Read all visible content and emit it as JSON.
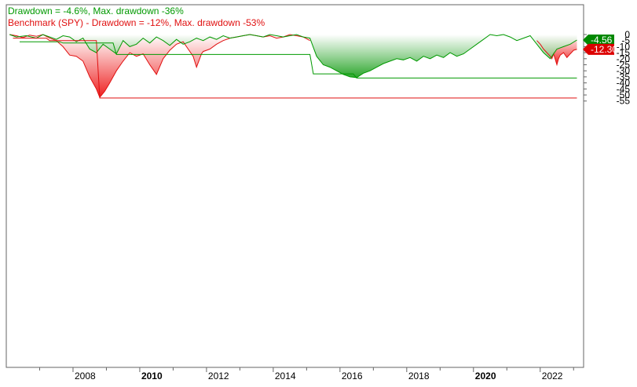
{
  "chart_data": {
    "type": "area",
    "legend": {
      "placement": "top-left",
      "strategy_label": "Drawdown = -4.6%, Max. drawdown -36%",
      "benchmark_label": "Benchmark (SPY) - Drawdown = -12%, Max. drawdown -53%"
    },
    "colors": {
      "strategy": "#009900",
      "strategy_fill": "#1a9e1a",
      "benchmark": "#e01010",
      "benchmark_fill": "#ee2020",
      "badge_strategy": "#008800",
      "badge_benchmark": "#dd0000"
    },
    "xlim": [
      2006.0,
      2023.3
    ],
    "ylim": [
      -55,
      2
    ],
    "grid": false,
    "x_ticks": [
      {
        "value": 2008,
        "label": "2008",
        "bold": false
      },
      {
        "value": 2010,
        "label": "2010",
        "bold": true
      },
      {
        "value": 2012,
        "label": "2012",
        "bold": false
      },
      {
        "value": 2014,
        "label": "2014",
        "bold": false
      },
      {
        "value": 2016,
        "label": "2016",
        "bold": false
      },
      {
        "value": 2018,
        "label": "2018",
        "bold": false
      },
      {
        "value": 2020,
        "label": "2020",
        "bold": true
      },
      {
        "value": 2022,
        "label": "2022",
        "bold": false
      }
    ],
    "y_ticks": [
      {
        "value": 0,
        "label": "0"
      },
      {
        "value": -5,
        "label": "-5"
      },
      {
        "value": -10,
        "label": "-10"
      },
      {
        "value": -15,
        "label": "-15"
      },
      {
        "value": -20,
        "label": "-20"
      },
      {
        "value": -25,
        "label": "-25"
      },
      {
        "value": -30,
        "label": "-30"
      },
      {
        "value": -35,
        "label": "-35"
      },
      {
        "value": -40,
        "label": "-40"
      },
      {
        "value": -45,
        "label": "-45"
      },
      {
        "value": -50,
        "label": "-50"
      },
      {
        "value": -55,
        "label": "-55"
      }
    ],
    "badges": {
      "strategy_value": "-4.56",
      "strategy_level": -4.56,
      "benchmark_value": "-12.30",
      "benchmark_level": -12.3
    },
    "series": [
      {
        "key": "benchmark",
        "x": [
          2006.1,
          2006.3,
          2006.5,
          2006.7,
          2006.9,
          2007.1,
          2007.3,
          2007.5,
          2007.7,
          2007.9,
          2008.1,
          2008.3,
          2008.5,
          2008.7,
          2008.8,
          2008.95,
          2009.1,
          2009.3,
          2009.5,
          2009.7,
          2009.9,
          2010.1,
          2010.3,
          2010.5,
          2010.7,
          2010.9,
          2011.1,
          2011.3,
          2011.5,
          2011.6,
          2011.7,
          2011.85,
          2011.9,
          2012.1,
          2012.3,
          2012.5,
          2012.7,
          2012.9,
          2013.1,
          2013.3,
          2013.5,
          2013.7,
          2013.9,
          2014.1,
          2014.3,
          2014.5,
          2014.7,
          2014.9,
          2015.1
        ],
        "y": [
          0,
          -1.0,
          -2.5,
          -0.5,
          -1.5,
          0,
          -3.0,
          -5.0,
          -10.0,
          -17.0,
          -18.0,
          -22.0,
          -35.0,
          -45.0,
          -52.0,
          -47.0,
          -40.0,
          -30.0,
          -22.0,
          -15.0,
          -18.0,
          -16.0,
          -25.0,
          -33.0,
          -20.0,
          -13.0,
          -8.0,
          -6.0,
          -14.0,
          -18.0,
          -27.0,
          -16.0,
          -14.0,
          -12.0,
          -8.0,
          -5.0,
          -3.0,
          -2.0,
          -1.0,
          0,
          -1.0,
          -2.0,
          -1.0,
          -3.0,
          -2.0,
          0,
          -1.0,
          -2.0,
          -5.0
        ]
      },
      {
        "key": "benchmark_recent",
        "x": [
          2021.9,
          2022.0,
          2022.1,
          2022.2,
          2022.3,
          2022.35,
          2022.4,
          2022.5,
          2022.55,
          2022.6,
          2022.7,
          2022.8,
          2022.9,
          2023.0,
          2023.1
        ],
        "y": [
          -5.0,
          -8.0,
          -12.0,
          -15.0,
          -18.0,
          -20.0,
          -16.0,
          -25.0,
          -20.0,
          -17.0,
          -15.0,
          -19.0,
          -16.0,
          -13.0,
          -12.3
        ]
      },
      {
        "key": "strategy",
        "x": [
          2006.1,
          2006.3,
          2006.6,
          2006.9,
          2007.1,
          2007.3,
          2007.5,
          2007.7,
          2007.9,
          2008.1,
          2008.3,
          2008.5,
          2008.7,
          2008.9,
          2009.1,
          2009.3,
          2009.5,
          2009.7,
          2009.9,
          2010.1,
          2010.3,
          2010.5,
          2010.7,
          2010.9,
          2011.1,
          2011.3,
          2011.5,
          2011.7,
          2011.9,
          2012.1,
          2012.3,
          2012.5,
          2012.7,
          2012.9,
          2013.1,
          2013.3,
          2013.5,
          2013.7,
          2013.9,
          2014.1,
          2014.3,
          2014.5,
          2014.7,
          2014.9,
          2015.1,
          2015.3,
          2015.5,
          2015.7,
          2015.9,
          2016.1,
          2016.3,
          2016.5,
          2016.7,
          2016.9,
          2017.1,
          2017.3,
          2017.5,
          2017.7,
          2017.9,
          2018.1,
          2018.3,
          2018.5,
          2018.7,
          2018.9,
          2019.1,
          2019.3,
          2019.5,
          2019.7,
          2019.9,
          2020.1,
          2020.3,
          2020.5,
          2020.7,
          2020.9,
          2021.1,
          2021.3,
          2021.5,
          2021.7,
          2021.9,
          2022.1,
          2022.3,
          2022.5,
          2022.7,
          2022.9,
          2023.1
        ],
        "y": [
          0,
          -2.0,
          -1.0,
          -3.0,
          0,
          -2.0,
          -4.0,
          -1.0,
          -2.0,
          -6.0,
          -3.0,
          -12.0,
          -15.0,
          -8.0,
          -12.0,
          -16.0,
          -5.0,
          -10.0,
          -8.0,
          -3.0,
          -7.0,
          -2.0,
          -5.0,
          -9.0,
          -4.0,
          -8.0,
          -6.0,
          -3.0,
          -5.0,
          -2.0,
          -4.0,
          -1.0,
          -3.0,
          -2.0,
          -1.0,
          0,
          -1.0,
          -2.0,
          0,
          -1.0,
          -2.0,
          -1.0,
          0,
          -2.0,
          -3.0,
          -18.0,
          -25.0,
          -27.0,
          -30.0,
          -33.0,
          -35.0,
          -35.6,
          -32.0,
          -30.0,
          -27.0,
          -24.0,
          -22.0,
          -20.0,
          -21.0,
          -19.0,
          -22.0,
          -18.0,
          -20.0,
          -17.0,
          -19.0,
          -15.0,
          -18.0,
          -16.0,
          -12.0,
          -8.0,
          -4.0,
          0,
          -1.0,
          0,
          -2.0,
          -5.0,
          -3.0,
          -1.0,
          -8.0,
          -15.0,
          -20.0,
          -12.0,
          -10.0,
          -8.0,
          -4.56
        ]
      },
      {
        "key": "benchmark_maxdd",
        "x": [
          2006.2,
          2007.2,
          2007.3,
          2008.7,
          2008.8,
          2023.1
        ],
        "y": [
          -3.0,
          -3.0,
          -5.0,
          -5.0,
          -52.5,
          -52.5
        ]
      },
      {
        "key": "strategy_maxdd",
        "x": [
          2006.4,
          2007.6,
          2007.7,
          2009.2,
          2009.3,
          2015.1,
          2015.2,
          2016.4,
          2016.5,
          2023.1
        ],
        "y": [
          -6.0,
          -6.0,
          -7.0,
          -7.0,
          -16.5,
          -16.5,
          -32.5,
          -32.5,
          -36.0,
          -36.0
        ]
      }
    ]
  }
}
